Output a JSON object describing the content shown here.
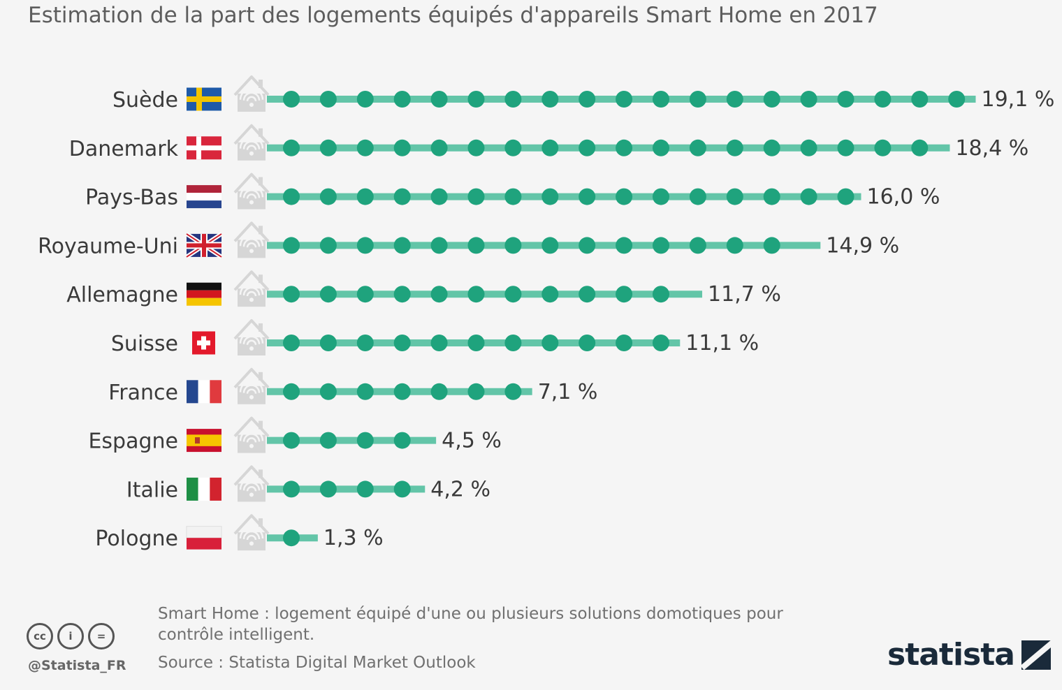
{
  "subtitle": "Estimation de la part des logements équipés d'appareils Smart Home en 2017",
  "chart_data": {
    "type": "bar",
    "unit": "%",
    "categories": [
      "Suède",
      "Danemark",
      "Pays-Bas",
      "Royaume-Uni",
      "Allemagne",
      "Suisse",
      "France",
      "Espagne",
      "Italie",
      "Pologne"
    ],
    "values": [
      19.1,
      18.4,
      16.0,
      14.9,
      11.7,
      11.1,
      7.1,
      4.5,
      4.2,
      1.3
    ],
    "value_labels": [
      "19,1 %",
      "18,4 %",
      "16,0 %",
      "14,9 %",
      "11,7 %",
      "11,1 %",
      "7,1 %",
      "4,5 %",
      "4,2 %",
      "1,3 %"
    ],
    "flags": [
      "sweden-flag-icon",
      "denmark-flag-icon",
      "netherlands-flag-icon",
      "uk-flag-icon",
      "germany-flag-icon",
      "switzerland-flag-icon",
      "france-flag-icon",
      "spain-flag-icon",
      "italy-flag-icon",
      "poland-flag-icon"
    ],
    "dot_interval": 1,
    "colors": {
      "bar": "#63c5a8",
      "dot": "#1fa37d",
      "house": "#d6d6d6"
    }
  },
  "footnote": "Smart Home : logement équipé d'une ou plusieurs solutions domotiques pour contrôle intelligent.",
  "source": "Source : Statista Digital Market Outlook",
  "license": {
    "icons": [
      "cc-icon",
      "attribution-icon",
      "no-derivatives-icon"
    ],
    "cc": "cc",
    "by": "i",
    "nd": "="
  },
  "handle": "@Statista_FR",
  "brand": "statista"
}
